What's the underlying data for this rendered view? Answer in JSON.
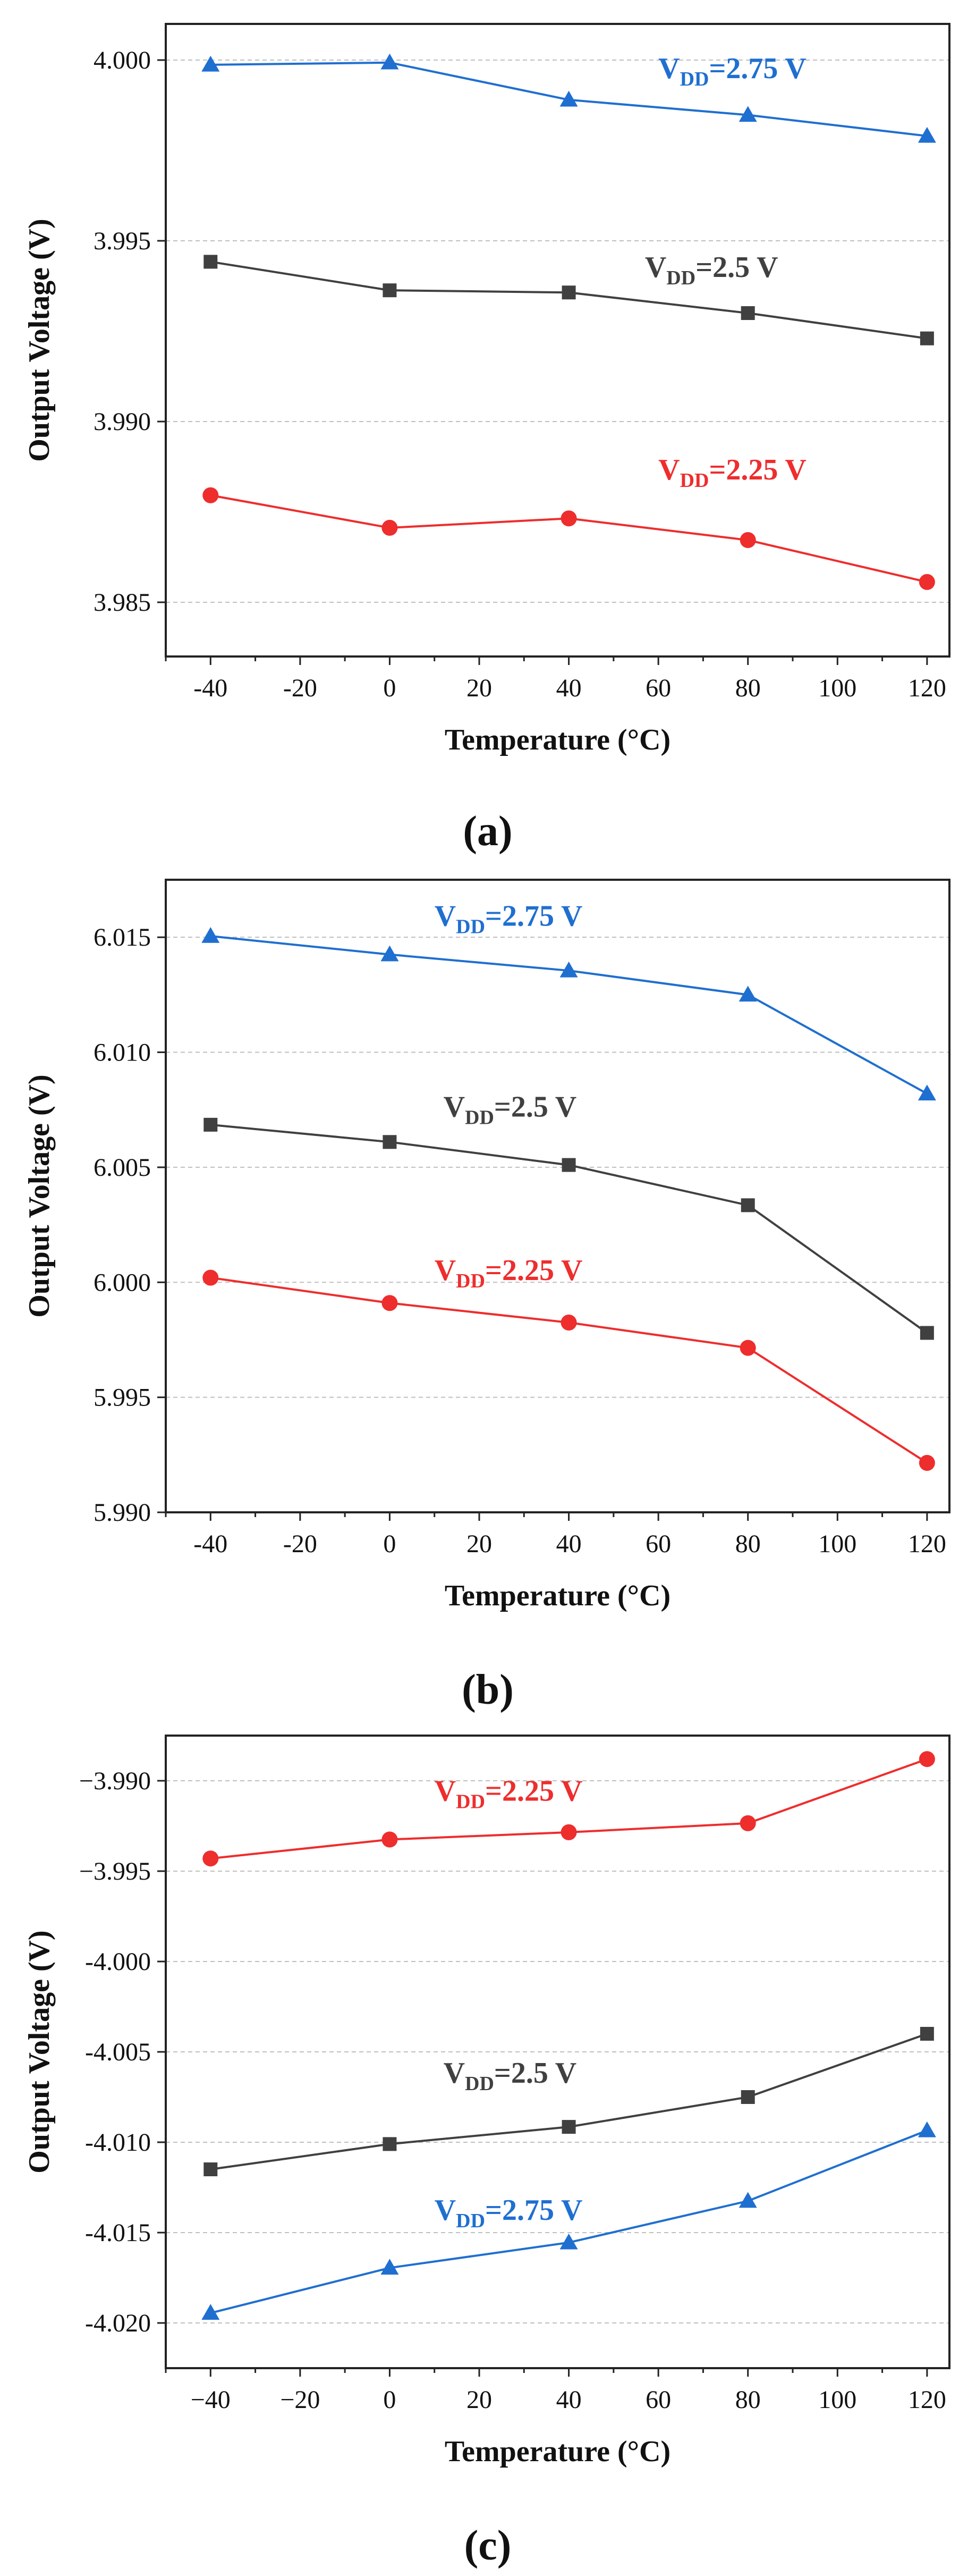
{
  "colors": {
    "vdd_2_75": "#1f6fd0",
    "vdd_2_5": "#404040",
    "vdd_2_25": "#ee2d2d",
    "grid": "#bfbfbf",
    "axis": "#222222"
  },
  "chart_data": [
    {
      "type": "line",
      "panel_label": "(a)",
      "title": "",
      "xlabel": "Temperature (°C)",
      "ylabel": "Output Voltage (V)",
      "xlim": [
        -50,
        125
      ],
      "ylim": [
        3.9835,
        4.001
      ],
      "x_ticks": [
        -40,
        -20,
        0,
        20,
        40,
        60,
        80,
        100,
        120
      ],
      "x_tick_labels": [
        "-40",
        "-20",
        "0",
        "20",
        "40",
        "60",
        "80",
        "100",
        "120"
      ],
      "y_ticks": [
        3.985,
        3.99,
        3.995,
        4.0
      ],
      "y_tick_labels": [
        "3.985",
        "3.990",
        "3.995",
        "4.000"
      ],
      "grid": true,
      "x": [
        -40,
        0,
        40,
        80,
        120
      ],
      "series": [
        {
          "name": "VDD=2.75 V",
          "label_main": "V",
          "label_sub": "DD",
          "label_rest": "=2.75 V",
          "color_key": "vdd_2_75",
          "marker": "triangle",
          "values": [
            3.99987,
            3.99993,
            3.9989,
            3.99848,
            3.9979
          ],
          "label_pos": [
            60,
            3.9995
          ]
        },
        {
          "name": "VDD=2.5 V",
          "label_main": "V",
          "label_sub": "DD",
          "label_rest": "=2.5 V",
          "color_key": "vdd_2_5",
          "marker": "square",
          "values": [
            3.99442,
            3.99363,
            3.99357,
            3.993,
            3.9923
          ],
          "label_pos": [
            57,
            3.994
          ]
        },
        {
          "name": "VDD=2.25 V",
          "label_main": "V",
          "label_sub": "DD",
          "label_rest": "=2.25 V",
          "color_key": "vdd_2_25",
          "marker": "circle",
          "values": [
            3.98796,
            3.98706,
            3.98732,
            3.98672,
            3.98556
          ],
          "label_pos": [
            60,
            3.9884
          ]
        }
      ]
    },
    {
      "type": "line",
      "panel_label": "(b)",
      "title": "",
      "xlabel": "Temperature (°C)",
      "ylabel": "Output Voltage (V)",
      "xlim": [
        -50,
        125
      ],
      "ylim": [
        5.99,
        6.0175
      ],
      "x_ticks": [
        -40,
        -20,
        0,
        20,
        40,
        60,
        80,
        100,
        120
      ],
      "x_tick_labels": [
        "-40",
        "-20",
        "0",
        "20",
        "40",
        "60",
        "80",
        "100",
        "120"
      ],
      "y_ticks": [
        5.99,
        5.995,
        6.0,
        6.005,
        6.01,
        6.015
      ],
      "y_tick_labels": [
        "5.990",
        "5.995",
        "6.000",
        "6.005",
        "6.010",
        "6.015"
      ],
      "grid": true,
      "x": [
        -40,
        0,
        40,
        80,
        120
      ],
      "series": [
        {
          "name": "VDD=2.75 V",
          "label_main": "V",
          "label_sub": "DD",
          "label_rest": "=2.75 V",
          "color_key": "vdd_2_75",
          "marker": "triangle",
          "values": [
            6.01505,
            6.01425,
            6.01355,
            6.0125,
            6.0082
          ],
          "label_pos": [
            10,
            6.0155
          ]
        },
        {
          "name": "VDD=2.5 V",
          "label_main": "V",
          "label_sub": "DD",
          "label_rest": "=2.5 V",
          "color_key": "vdd_2_5",
          "marker": "square",
          "values": [
            6.00685,
            6.0061,
            6.0051,
            6.00335,
            5.9978
          ],
          "label_pos": [
            12,
            6.0072
          ]
        },
        {
          "name": "VDD=2.25 V",
          "label_main": "V",
          "label_sub": "DD",
          "label_rest": "=2.25 V",
          "color_key": "vdd_2_25",
          "marker": "circle",
          "values": [
            6.0002,
            5.9991,
            5.99825,
            5.99715,
            5.99215
          ],
          "label_pos": [
            10,
            6.0001
          ]
        }
      ]
    },
    {
      "type": "line",
      "panel_label": "(c)",
      "title": "",
      "xlabel": "Temperature (°C)",
      "ylabel": "Output Voltage (V)",
      "xlim": [
        -50,
        125
      ],
      "ylim": [
        -4.0225,
        -3.9875
      ],
      "x_ticks": [
        -40,
        -20,
        0,
        20,
        40,
        60,
        80,
        100,
        120
      ],
      "x_tick_labels": [
        "−40",
        "−20",
        "0",
        "20",
        "40",
        "60",
        "80",
        "100",
        "120"
      ],
      "y_ticks": [
        -4.02,
        -4.015,
        -4.01,
        -4.005,
        -4.0,
        -3.995,
        -3.99
      ],
      "y_tick_labels": [
        "-4.020",
        "-4.015",
        "-4.010",
        "-4.005",
        "-4.000",
        "−3.995",
        "−3.990"
      ],
      "grid": true,
      "x": [
        -40,
        0,
        40,
        80,
        120
      ],
      "series": [
        {
          "name": "VDD=2.25 V",
          "label_main": "V",
          "label_sub": "DD",
          "label_rest": "=2.25 V",
          "color_key": "vdd_2_25",
          "marker": "circle",
          "values": [
            -3.9943,
            -3.99325,
            -3.99285,
            -3.99235,
            -3.9888
          ],
          "label_pos": [
            10,
            -3.9911
          ]
        },
        {
          "name": "VDD=2.5 V",
          "label_main": "V",
          "label_sub": "DD",
          "label_rest": "=2.5 V",
          "color_key": "vdd_2_5",
          "marker": "square",
          "values": [
            -4.0115,
            -4.0101,
            -4.00915,
            -4.0075,
            -4.004
          ],
          "label_pos": [
            12,
            -4.0067
          ]
        },
        {
          "name": "VDD=2.75 V",
          "label_main": "V",
          "label_sub": "DD",
          "label_rest": "=2.75 V",
          "color_key": "vdd_2_75",
          "marker": "triangle",
          "values": [
            -4.01945,
            -4.01695,
            -4.01555,
            -4.01325,
            -4.00935
          ],
          "label_pos": [
            10,
            -4.0143
          ]
        }
      ]
    }
  ]
}
